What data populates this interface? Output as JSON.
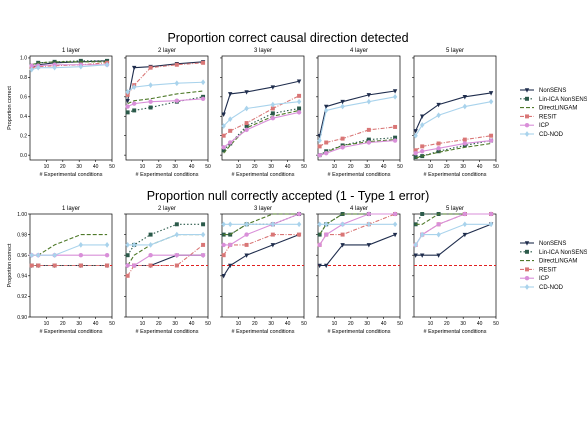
{
  "x_values": [
    1,
    5,
    15,
    31,
    47
  ],
  "chart_data": [
    {
      "type": "line",
      "title": "Proportion correct causal direction detected",
      "ylabel": "Proportion correct",
      "xlabel": "# Experimental conditions",
      "xlim": [
        0,
        50
      ],
      "ylim": [
        -0.05,
        1.02
      ],
      "yticks": [
        "0.0",
        "0.2",
        "0.4",
        "0.6",
        "0.8",
        "1.0"
      ],
      "xticks": [
        "10",
        "20",
        "30",
        "40",
        "50"
      ],
      "legend": [
        "NonSENS",
        "Lin-ICA NonSENS",
        "DirectLiNGAM",
        "RESIT",
        "ICP",
        "CD-NOD"
      ],
      "panels": [
        {
          "title": "1 layer",
          "series": {
            "NonSENS": [
              0.9,
              0.93,
              0.95,
              0.96,
              0.97
            ],
            "Lin-ICA NonSENS": [
              0.92,
              0.95,
              0.96,
              0.97,
              0.97
            ],
            "DirectLiNGAM": [
              0.93,
              0.95,
              0.96,
              0.96,
              0.96
            ],
            "RESIT": [
              0.9,
              0.91,
              0.92,
              0.93,
              0.95
            ],
            "ICP": [
              0.92,
              0.92,
              0.93,
              0.93,
              0.93
            ],
            "CD-NOD": [
              0.88,
              0.9,
              0.9,
              0.91,
              0.93
            ]
          }
        },
        {
          "title": "2 layer",
          "series": {
            "NonSENS": [
              0.56,
              0.9,
              0.91,
              0.94,
              0.96
            ],
            "Lin-ICA NonSENS": [
              0.44,
              0.46,
              0.49,
              0.55,
              0.6
            ],
            "DirectLiNGAM": [
              0.53,
              0.56,
              0.58,
              0.63,
              0.66
            ],
            "RESIT": [
              0.62,
              0.72,
              0.9,
              0.93,
              0.95
            ],
            "ICP": [
              0.5,
              0.53,
              0.55,
              0.56,
              0.58
            ],
            "CD-NOD": [
              0.65,
              0.7,
              0.72,
              0.74,
              0.75
            ]
          }
        },
        {
          "title": "3 layer",
          "series": {
            "NonSENS": [
              0.42,
              0.63,
              0.65,
              0.7,
              0.76
            ],
            "Lin-ICA NonSENS": [
              0.05,
              0.12,
              0.3,
              0.43,
              0.48
            ],
            "DirectLiNGAM": [
              0.02,
              0.1,
              0.28,
              0.4,
              0.46
            ],
            "RESIT": [
              0.2,
              0.25,
              0.33,
              0.48,
              0.61
            ],
            "ICP": [
              0.08,
              0.13,
              0.26,
              0.38,
              0.44
            ],
            "CD-NOD": [
              0.3,
              0.37,
              0.48,
              0.52,
              0.55
            ]
          }
        },
        {
          "title": "4 layer",
          "series": {
            "NonSENS": [
              0.2,
              0.5,
              0.55,
              0.62,
              0.66
            ],
            "Lin-ICA NonSENS": [
              0.0,
              0.04,
              0.1,
              0.16,
              0.18
            ],
            "DirectLiNGAM": [
              -0.01,
              0.03,
              0.1,
              0.14,
              0.16
            ],
            "RESIT": [
              0.09,
              0.13,
              0.17,
              0.26,
              0.29
            ],
            "ICP": [
              0.0,
              0.02,
              0.08,
              0.13,
              0.15
            ],
            "CD-NOD": [
              0.15,
              0.46,
              0.5,
              0.55,
              0.6
            ]
          }
        },
        {
          "title": "5 layer",
          "series": {
            "NonSENS": [
              0.25,
              0.4,
              0.52,
              0.6,
              0.64
            ],
            "Lin-ICA NonSENS": [
              -0.02,
              -0.01,
              0.04,
              0.1,
              0.15
            ],
            "DirectLiNGAM": [
              -0.03,
              -0.01,
              0.03,
              0.08,
              0.12
            ],
            "RESIT": [
              0.05,
              0.09,
              0.12,
              0.16,
              0.2
            ],
            "ICP": [
              0.02,
              0.04,
              0.07,
              0.12,
              0.15
            ],
            "CD-NOD": [
              0.2,
              0.31,
              0.41,
              0.5,
              0.55
            ]
          }
        }
      ]
    },
    {
      "type": "line",
      "title": "Proportion null correctly accepted (1 - Type 1 error)",
      "ylabel": "Proportion correct",
      "xlabel": "# Experimental conditions",
      "xlim": [
        0,
        50
      ],
      "ylim": [
        0.9,
        1.0
      ],
      "yticks": [
        "0.90",
        "0.92",
        "0.94",
        "0.96",
        "0.98",
        "1.00"
      ],
      "xticks": [
        "10",
        "20",
        "30",
        "40",
        "50"
      ],
      "reference_line": 0.95,
      "legend": [
        "NonSENS",
        "Lin-ICA NonSENS",
        "DirectLiNGAM",
        "RESIT",
        "ICP",
        "CD-NOD"
      ],
      "panels": [
        {
          "title": "1 layer",
          "series": {
            "NonSENS": [
              0.95,
              0.95,
              0.95,
              0.95,
              0.95
            ],
            "Lin-ICA NonSENS": [
              0.95,
              0.95,
              0.95,
              0.95,
              0.95
            ],
            "DirectLiNGAM": [
              0.96,
              0.96,
              0.97,
              0.98,
              0.98
            ],
            "RESIT": [
              0.95,
              0.95,
              0.95,
              0.95,
              0.95
            ],
            "ICP": [
              0.96,
              0.96,
              0.96,
              0.96,
              0.96
            ],
            "CD-NOD": [
              0.96,
              0.96,
              0.96,
              0.97,
              0.97
            ]
          }
        },
        {
          "title": "2 layer",
          "series": {
            "NonSENS": [
              0.95,
              0.95,
              0.95,
              0.96,
              0.96
            ],
            "Lin-ICA NonSENS": [
              0.96,
              0.97,
              0.98,
              0.99,
              0.99
            ],
            "DirectLiNGAM": [
              0.95,
              0.96,
              0.97,
              0.98,
              0.98
            ],
            "RESIT": [
              0.94,
              0.95,
              0.95,
              0.95,
              0.97
            ],
            "ICP": [
              0.95,
              0.95,
              0.96,
              0.96,
              0.96
            ],
            "CD-NOD": [
              0.97,
              0.97,
              0.97,
              0.98,
              0.98
            ]
          }
        },
        {
          "title": "3 layer",
          "series": {
            "NonSENS": [
              0.94,
              0.95,
              0.96,
              0.97,
              0.98
            ],
            "Lin-ICA NonSENS": [
              0.98,
              0.98,
              0.99,
              0.99,
              1.0
            ],
            "DirectLiNGAM": [
              0.98,
              0.98,
              0.99,
              1.0,
              1.0
            ],
            "RESIT": [
              0.96,
              0.97,
              0.97,
              0.98,
              0.98
            ],
            "ICP": [
              0.97,
              0.97,
              0.98,
              0.99,
              1.0
            ],
            "CD-NOD": [
              0.99,
              0.99,
              0.99,
              0.99,
              0.99
            ]
          }
        },
        {
          "title": "4 layer",
          "series": {
            "NonSENS": [
              0.95,
              0.95,
              0.97,
              0.97,
              0.98
            ],
            "Lin-ICA NonSENS": [
              0.98,
              0.99,
              1.0,
              1.0,
              1.0
            ],
            "DirectLiNGAM": [
              0.98,
              0.99,
              1.0,
              1.0,
              1.0
            ],
            "RESIT": [
              0.97,
              0.98,
              0.98,
              0.99,
              1.0
            ],
            "ICP": [
              0.97,
              0.98,
              0.99,
              1.0,
              1.0
            ],
            "CD-NOD": [
              0.99,
              0.99,
              0.99,
              0.99,
              0.99
            ]
          }
        },
        {
          "title": "5 layer",
          "series": {
            "NonSENS": [
              0.96,
              0.96,
              0.96,
              0.98,
              0.99
            ],
            "Lin-ICA NonSENS": [
              0.99,
              1.0,
              1.0,
              1.0,
              1.0
            ],
            "DirectLiNGAM": [
              0.99,
              0.99,
              1.0,
              1.0,
              1.0
            ],
            "RESIT": [
              0.97,
              0.98,
              0.99,
              1.0,
              1.0
            ],
            "ICP": [
              0.97,
              0.98,
              0.99,
              1.0,
              1.0
            ],
            "CD-NOD": [
              0.97,
              0.98,
              0.98,
              0.99,
              0.99
            ]
          }
        }
      ]
    }
  ],
  "series_styles": {
    "NonSENS": {
      "color": "#1f2d4d",
      "dash": "",
      "marker": "tri-down"
    },
    "Lin-ICA NonSENS": {
      "color": "#2b5a4a",
      "dash": "1.5,2",
      "marker": "square"
    },
    "DirectLiNGAM": {
      "color": "#4f7a2a",
      "dash": "4,2",
      "marker": "none"
    },
    "RESIT": {
      "color": "#d97676",
      "dash": "4,1.5,1,1.5",
      "marker": "square"
    },
    "ICP": {
      "color": "#d98fd9",
      "dash": "",
      "marker": "circle"
    },
    "CD-NOD": {
      "color": "#a9d3ec",
      "dash": "",
      "marker": "diamond"
    }
  },
  "reference_color": "#e02020"
}
